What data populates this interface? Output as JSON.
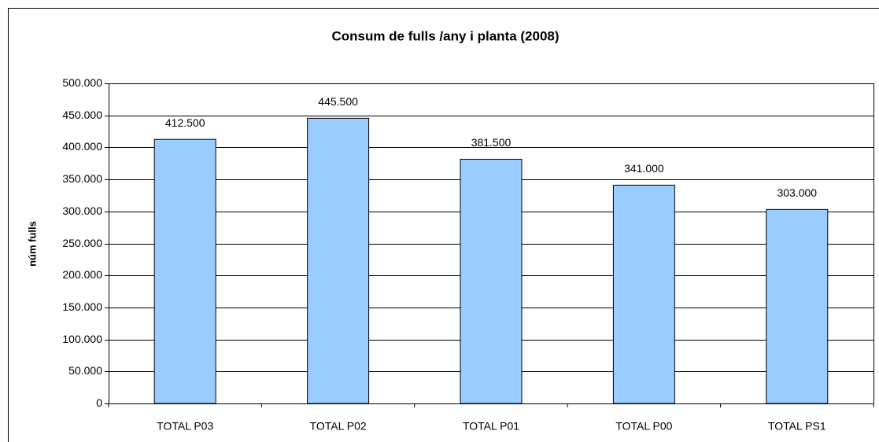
{
  "chart_data": {
    "type": "bar",
    "title": "Consum de fulls /any i  planta (2008)",
    "y_label": "núm fulls",
    "categories": [
      "TOTAL P03",
      "TOTAL P02",
      "TOTAL P01",
      "TOTAL P00",
      "TOTAL PS1"
    ],
    "values": [
      412500,
      445500,
      381500,
      341000,
      303000
    ],
    "value_labels": [
      "412.500",
      "445.500",
      "381.500",
      "341.000",
      "303.000"
    ],
    "color": "#99ccff",
    "ylim": [
      0,
      500000
    ],
    "yticks": [
      0,
      {
        "value": 50000,
        "label": "50.000"
      },
      {
        "value": 100000,
        "label": "100.000"
      },
      {
        "value": 150000,
        "label": "150.000"
      },
      {
        "value": 200000,
        "label": "200.000"
      },
      {
        "value": 250000,
        "label": "250.000"
      },
      {
        "value": 300000,
        "label": "300.000"
      },
      {
        "value": 350000,
        "label": "350.000"
      },
      {
        "value": 400000,
        "label": "400.000"
      },
      {
        "value": 450000,
        "label": "450.000"
      },
      {
        "value": 500000,
        "label": "500.000"
      }
    ],
    "grid": true
  }
}
